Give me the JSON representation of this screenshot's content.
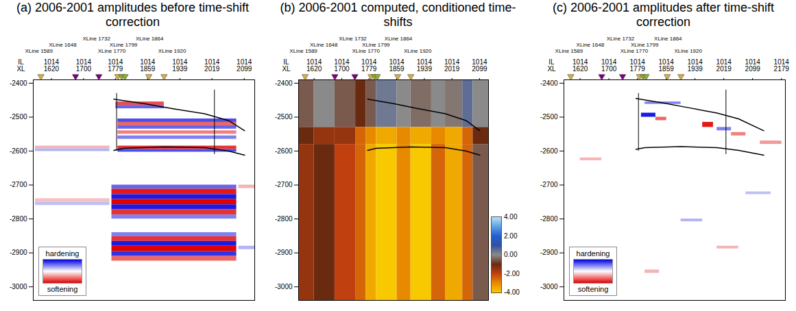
{
  "chart_data": [
    {
      "type": "heatmap",
      "title": "(a) 2006-2001 amplitudes before time-shift correction",
      "axis_row_labels": [
        "IL",
        "XL"
      ],
      "inline": "1014",
      "xlim": [
        1575,
        2125
      ],
      "xticks": [
        1620,
        1700,
        1779,
        1859,
        1939,
        2019,
        2099
      ],
      "ylim": [
        -3040,
        -2390
      ],
      "yticks": [
        -2400,
        -2500,
        -2600,
        -2700,
        -2800,
        -2900,
        -3000
      ],
      "xline_labels": [
        {
          "value": 1589,
          "label": "XLine 1589"
        },
        {
          "value": 1648,
          "label": "XLine 1648"
        },
        {
          "value": 1732,
          "label": "XLine 1732"
        },
        {
          "value": 1770,
          "label": "XLine 1770"
        },
        {
          "value": 1799,
          "label": "XLine 1799"
        },
        {
          "value": 1864,
          "label": "XLine 1864"
        },
        {
          "value": 1920,
          "label": "XLine 1920"
        }
      ],
      "markers": [
        {
          "x": 1594,
          "color": "#d8b040"
        },
        {
          "x": 1680,
          "color": "#800080"
        },
        {
          "x": 1738,
          "color": "#800080"
        },
        {
          "x": 1785,
          "color": "#d8b040"
        },
        {
          "x": 1795,
          "color": "#90b030"
        },
        {
          "x": 1803,
          "color": "#90b030"
        },
        {
          "x": 1862,
          "color": "#d8b040"
        },
        {
          "x": 1900,
          "color": "#d8b040"
        }
      ],
      "horizons": [
        [
          [
            1775,
            -2447
          ],
          [
            1850,
            -2460
          ],
          [
            1920,
            -2475
          ],
          [
            2000,
            -2490
          ],
          [
            2060,
            -2510
          ],
          [
            2100,
            -2540
          ]
        ],
        [
          [
            1775,
            -2598
          ],
          [
            1800,
            -2592
          ],
          [
            1900,
            -2588
          ],
          [
            2000,
            -2590
          ],
          [
            2060,
            -2600
          ],
          [
            2100,
            -2612
          ]
        ]
      ],
      "wells": [
        {
          "x": 1782,
          "y1": -2430,
          "y2": -2600
        },
        {
          "x": 2025,
          "y1": -2420,
          "y2": -2610
        }
      ],
      "colorbar": {
        "range": [
          -1,
          1
        ],
        "labels": [
          "hardening",
          "softening"
        ],
        "colors": [
          "#0000e0",
          "#ffffff",
          "#e00000"
        ]
      },
      "cells": [
        {
          "x1": 1780,
          "x2": 1900,
          "y1": -2455,
          "y2": -2465,
          "value": -0.7
        },
        {
          "x1": 1780,
          "x2": 1900,
          "y1": -2465,
          "y2": -2475,
          "value": 0.6
        },
        {
          "x1": 1785,
          "x2": 2080,
          "y1": -2505,
          "y2": -2515,
          "value": 0.7
        },
        {
          "x1": 1785,
          "x2": 2080,
          "y1": -2515,
          "y2": -2525,
          "value": -0.6
        },
        {
          "x1": 1785,
          "x2": 2080,
          "y1": -2525,
          "y2": -2535,
          "value": 0.6
        },
        {
          "x1": 1785,
          "x2": 2080,
          "y1": -2540,
          "y2": -2550,
          "value": -0.5
        },
        {
          "x1": 1785,
          "x2": 2080,
          "y1": -2555,
          "y2": -2565,
          "value": 0.5
        },
        {
          "x1": 1785,
          "x2": 2080,
          "y1": -2585,
          "y2": -2595,
          "value": -0.8
        },
        {
          "x1": 1785,
          "x2": 2080,
          "y1": -2595,
          "y2": -2603,
          "value": 0.7
        },
        {
          "x1": 1580,
          "x2": 1765,
          "y1": -2585,
          "y2": -2593,
          "value": -0.3
        },
        {
          "x1": 1580,
          "x2": 1765,
          "y1": -2593,
          "y2": -2601,
          "value": 0.3
        },
        {
          "x1": 1580,
          "x2": 1765,
          "y1": -2740,
          "y2": -2750,
          "value": -0.25
        },
        {
          "x1": 1580,
          "x2": 1765,
          "y1": -2750,
          "y2": -2760,
          "value": 0.25
        },
        {
          "x1": 2085,
          "x2": 2125,
          "y1": -2700,
          "y2": -2710,
          "value": -0.3
        },
        {
          "x1": 2085,
          "x2": 2125,
          "y1": -2880,
          "y2": -2890,
          "value": 0.3
        },
        {
          "x1": 1770,
          "x2": 2080,
          "y1": -2700,
          "y2": -2712,
          "value": 0.6
        },
        {
          "x1": 1770,
          "x2": 2080,
          "y1": -2712,
          "y2": -2728,
          "value": -0.9
        },
        {
          "x1": 1770,
          "x2": 2080,
          "y1": -2728,
          "y2": -2742,
          "value": 0.9
        },
        {
          "x1": 1770,
          "x2": 2080,
          "y1": -2742,
          "y2": -2758,
          "value": -1
        },
        {
          "x1": 1770,
          "x2": 2080,
          "y1": -2758,
          "y2": -2772,
          "value": 0.9
        },
        {
          "x1": 1770,
          "x2": 2080,
          "y1": -2772,
          "y2": -2788,
          "value": -0.8
        },
        {
          "x1": 1770,
          "x2": 2080,
          "y1": -2788,
          "y2": -2800,
          "value": 0.5
        },
        {
          "x1": 1770,
          "x2": 2080,
          "y1": -2840,
          "y2": -2852,
          "value": 0.5
        },
        {
          "x1": 1770,
          "x2": 2080,
          "y1": -2852,
          "y2": -2866,
          "value": -0.8
        },
        {
          "x1": 1770,
          "x2": 2080,
          "y1": -2866,
          "y2": -2880,
          "value": 0.9
        },
        {
          "x1": 1770,
          "x2": 2080,
          "y1": -2880,
          "y2": -2896,
          "value": -1
        },
        {
          "x1": 1770,
          "x2": 2080,
          "y1": -2896,
          "y2": -2910,
          "value": 0.8
        },
        {
          "x1": 1770,
          "x2": 2080,
          "y1": -2910,
          "y2": -2924,
          "value": -0.6
        }
      ]
    },
    {
      "type": "heatmap",
      "title": "(b) 2006-2001 computed, conditioned time-shifts",
      "axis_row_labels": [
        "IL",
        "XL"
      ],
      "inline": "1014",
      "xlim": [
        1575,
        2125
      ],
      "xticks": [
        1620,
        1700,
        1779,
        1859,
        1939,
        2019,
        2099
      ],
      "ylim": [
        -3040,
        -2390
      ],
      "yticks": [
        -2400,
        -2500,
        -2600,
        -2700,
        -2800,
        -2900,
        -3000
      ],
      "xline_labels": [
        {
          "value": 1589,
          "label": "XLine 1589"
        },
        {
          "value": 1648,
          "label": "XLine 1648"
        },
        {
          "value": 1732,
          "label": "XLine 1732"
        },
        {
          "value": 1770,
          "label": "XLine 1770"
        },
        {
          "value": 1799,
          "label": "XLine 1799"
        },
        {
          "value": 1864,
          "label": "XLine 1864"
        },
        {
          "value": 1920,
          "label": "XLine 1920"
        }
      ],
      "markers": [
        {
          "x": 1594,
          "color": "#d8b040"
        },
        {
          "x": 1680,
          "color": "#800080"
        },
        {
          "x": 1738,
          "color": "#800080"
        },
        {
          "x": 1785,
          "color": "#d8b040"
        },
        {
          "x": 1795,
          "color": "#90b030"
        },
        {
          "x": 1803,
          "color": "#90b030"
        },
        {
          "x": 1862,
          "color": "#d8b040"
        },
        {
          "x": 1900,
          "color": "#d8b040"
        }
      ],
      "horizons": [
        [
          [
            1775,
            -2447
          ],
          [
            1850,
            -2460
          ],
          [
            1920,
            -2475
          ],
          [
            2000,
            -2490
          ],
          [
            2060,
            -2510
          ],
          [
            2100,
            -2540
          ]
        ],
        [
          [
            1775,
            -2598
          ],
          [
            1800,
            -2592
          ],
          [
            1900,
            -2588
          ],
          [
            2000,
            -2590
          ],
          [
            2060,
            -2600
          ],
          [
            2100,
            -2612
          ]
        ]
      ],
      "wells": [],
      "colorbar": {
        "range": [
          -4,
          4
        ],
        "ticks": [
          {
            "value": 4,
            "label": "4.00"
          },
          {
            "value": 2,
            "label": "2.00"
          },
          {
            "value": 0,
            "label": "0.00"
          },
          {
            "value": -2,
            "label": "-2.00"
          },
          {
            "value": -4,
            "label": "-4.00"
          }
        ],
        "colors": [
          "#b8e0f8",
          "#60a0e0",
          "#2060d0",
          "#3050a0",
          "#8a8a8a",
          "#6a2a10",
          "#c04010",
          "#e88a00",
          "#f8c800"
        ]
      },
      "cells": [
        {
          "x1": 1575,
          "x2": 1620,
          "y1": -2390,
          "y2": -2530,
          "value": -0.5
        },
        {
          "x1": 1575,
          "x2": 1620,
          "y1": -2530,
          "y2": -2580,
          "value": -1
        },
        {
          "x1": 1575,
          "x2": 1620,
          "y1": -2580,
          "y2": -3040,
          "value": -1.5
        },
        {
          "x1": 1620,
          "x2": 1680,
          "y1": -2390,
          "y2": -2530,
          "value": 0
        },
        {
          "x1": 1620,
          "x2": 1680,
          "y1": -2530,
          "y2": -2580,
          "value": -1.5
        },
        {
          "x1": 1620,
          "x2": 1680,
          "y1": -2580,
          "y2": -3040,
          "value": -1
        },
        {
          "x1": 1680,
          "x2": 1740,
          "y1": -2390,
          "y2": -2530,
          "value": -0.5
        },
        {
          "x1": 1680,
          "x2": 1740,
          "y1": -2530,
          "y2": -2580,
          "value": -1.5
        },
        {
          "x1": 1680,
          "x2": 1740,
          "y1": -2580,
          "y2": -3040,
          "value": -2
        },
        {
          "x1": 1740,
          "x2": 1770,
          "y1": -2390,
          "y2": -2530,
          "value": -1
        },
        {
          "x1": 1740,
          "x2": 1770,
          "y1": -2530,
          "y2": -2580,
          "value": -2.5
        },
        {
          "x1": 1740,
          "x2": 1770,
          "y1": -2580,
          "y2": -3040,
          "value": -2.5
        },
        {
          "x1": 1770,
          "x2": 1800,
          "y1": -2390,
          "y2": -2530,
          "value": -0.5
        },
        {
          "x1": 1770,
          "x2": 1800,
          "y1": -2530,
          "y2": -2580,
          "value": -3
        },
        {
          "x1": 1770,
          "x2": 1800,
          "y1": -2580,
          "y2": -3040,
          "value": -3.5
        },
        {
          "x1": 1800,
          "x2": 1860,
          "y1": -2390,
          "y2": -2530,
          "value": 0.3
        },
        {
          "x1": 1800,
          "x2": 1860,
          "y1": -2530,
          "y2": -2580,
          "value": -3.5
        },
        {
          "x1": 1800,
          "x2": 1860,
          "y1": -2580,
          "y2": -3040,
          "value": -4
        },
        {
          "x1": 1860,
          "x2": 1900,
          "y1": -2390,
          "y2": -2530,
          "value": 0
        },
        {
          "x1": 1860,
          "x2": 1900,
          "y1": -2530,
          "y2": -2580,
          "value": -3
        },
        {
          "x1": 1860,
          "x2": 1900,
          "y1": -2580,
          "y2": -3040,
          "value": -3
        },
        {
          "x1": 1900,
          "x2": 1960,
          "y1": -2390,
          "y2": -2530,
          "value": -0.3
        },
        {
          "x1": 1900,
          "x2": 1960,
          "y1": -2530,
          "y2": -2580,
          "value": -3.5
        },
        {
          "x1": 1900,
          "x2": 1960,
          "y1": -2580,
          "y2": -3040,
          "value": -4
        },
        {
          "x1": 1960,
          "x2": 2000,
          "y1": -2390,
          "y2": -2530,
          "value": 0
        },
        {
          "x1": 1960,
          "x2": 2000,
          "y1": -2530,
          "y2": -2580,
          "value": -3
        },
        {
          "x1": 1960,
          "x2": 2000,
          "y1": -2580,
          "y2": -3040,
          "value": -2.5
        },
        {
          "x1": 2000,
          "x2": 2050,
          "y1": -2390,
          "y2": -2530,
          "value": -0.2
        },
        {
          "x1": 2000,
          "x2": 2050,
          "y1": -2530,
          "y2": -2580,
          "value": -3.5
        },
        {
          "x1": 2000,
          "x2": 2050,
          "y1": -2580,
          "y2": -3040,
          "value": -3.5
        },
        {
          "x1": 2050,
          "x2": 2080,
          "y1": -2390,
          "y2": -2530,
          "value": 0.5
        },
        {
          "x1": 2050,
          "x2": 2080,
          "y1": -2530,
          "y2": -2580,
          "value": -2.5
        },
        {
          "x1": 2050,
          "x2": 2080,
          "y1": -2580,
          "y2": -3040,
          "value": -2.5
        },
        {
          "x1": 2080,
          "x2": 2125,
          "y1": -2390,
          "y2": -2530,
          "value": 0
        },
        {
          "x1": 2080,
          "x2": 2125,
          "y1": -2530,
          "y2": -2580,
          "value": -1
        },
        {
          "x1": 2080,
          "x2": 2125,
          "y1": -2580,
          "y2": -3040,
          "value": -0.5
        }
      ]
    },
    {
      "type": "heatmap",
      "title": "(c) 2006-2001 amplitudes after time-shift correction",
      "axis_row_labels": [
        "IL",
        "XL"
      ],
      "inline": "1014",
      "xlim": [
        1575,
        2190
      ],
      "xticks": [
        1620,
        1700,
        1779,
        1859,
        1939,
        2019,
        2099,
        2179
      ],
      "ylim": [
        -3040,
        -2390
      ],
      "yticks": [
        -2400,
        -2500,
        -2600,
        -2700,
        -2800,
        -2900,
        -3000
      ],
      "xline_labels": [
        {
          "value": 1589,
          "label": "XLine 1589"
        },
        {
          "value": 1648,
          "label": "XLine 1648"
        },
        {
          "value": 1732,
          "label": "XLine 1732"
        },
        {
          "value": 1770,
          "label": "XLine 1770"
        },
        {
          "value": 1799,
          "label": "XLine 1799"
        },
        {
          "value": 1864,
          "label": "XLine 1864"
        },
        {
          "value": 1920,
          "label": "XLine 1920"
        }
      ],
      "markers": [
        {
          "x": 1594,
          "color": "#d8b040"
        },
        {
          "x": 1680,
          "color": "#800080"
        },
        {
          "x": 1738,
          "color": "#800080"
        },
        {
          "x": 1785,
          "color": "#d8b040"
        },
        {
          "x": 1795,
          "color": "#90b030"
        },
        {
          "x": 1803,
          "color": "#90b030"
        },
        {
          "x": 1862,
          "color": "#d8b040"
        },
        {
          "x": 1900,
          "color": "#d8b040"
        }
      ],
      "horizons": [
        [
          [
            1775,
            -2445
          ],
          [
            1850,
            -2458
          ],
          [
            1920,
            -2472
          ],
          [
            2000,
            -2488
          ],
          [
            2060,
            -2505
          ],
          [
            2130,
            -2540
          ]
        ],
        [
          [
            1775,
            -2595
          ],
          [
            1800,
            -2590
          ],
          [
            1900,
            -2587
          ],
          [
            2000,
            -2590
          ],
          [
            2060,
            -2598
          ],
          [
            2130,
            -2612
          ]
        ]
      ],
      "wells": [
        {
          "x": 1782,
          "y1": -2430,
          "y2": -2600
        },
        {
          "x": 2025,
          "y1": -2420,
          "y2": -2610
        }
      ],
      "colorbar": {
        "range": [
          -1,
          1
        ],
        "labels": [
          "hardening",
          "softening"
        ],
        "colors": [
          "#0000e0",
          "#ffffff",
          "#e00000"
        ]
      },
      "cells": [
        {
          "x1": 1800,
          "x2": 1900,
          "y1": -2455,
          "y2": -2462,
          "value": 0.5
        },
        {
          "x1": 1790,
          "x2": 1830,
          "y1": -2488,
          "y2": -2500,
          "value": 0.9
        },
        {
          "x1": 1830,
          "x2": 1860,
          "y1": -2500,
          "y2": -2510,
          "value": -0.6
        },
        {
          "x1": 1960,
          "x2": 1990,
          "y1": -2515,
          "y2": -2530,
          "value": -0.9
        },
        {
          "x1": 2000,
          "x2": 2040,
          "y1": -2530,
          "y2": -2540,
          "value": 0.5
        },
        {
          "x1": 2040,
          "x2": 2080,
          "y1": -2545,
          "y2": -2555,
          "value": -0.5
        },
        {
          "x1": 2120,
          "x2": 2180,
          "y1": -2570,
          "y2": -2580,
          "value": -0.4
        },
        {
          "x1": 1620,
          "x2": 1680,
          "y1": -2620,
          "y2": -2628,
          "value": -0.3
        },
        {
          "x1": 2080,
          "x2": 2150,
          "y1": -2720,
          "y2": -2728,
          "value": 0.25
        },
        {
          "x1": 1900,
          "x2": 1960,
          "y1": -2800,
          "y2": -2808,
          "value": 0.3
        },
        {
          "x1": 2000,
          "x2": 2060,
          "y1": -2880,
          "y2": -2888,
          "value": -0.3
        },
        {
          "x1": 1800,
          "x2": 1840,
          "y1": -2950,
          "y2": -2960,
          "value": -0.3
        }
      ]
    }
  ]
}
